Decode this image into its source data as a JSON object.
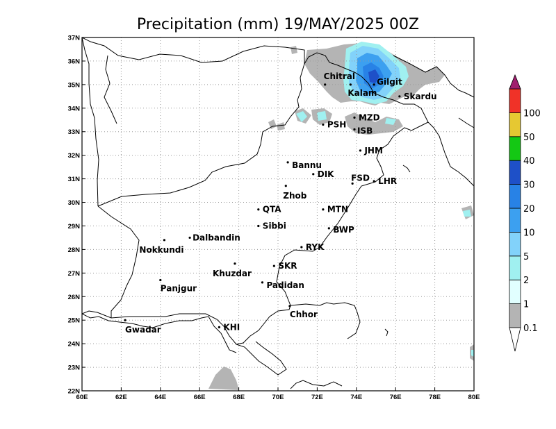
{
  "title": "Precipitation (mm) 19/MAY/2025 00Z",
  "map": {
    "x_ticks": [
      "60E",
      "62E",
      "64E",
      "66E",
      "68E",
      "70E",
      "72E",
      "74E",
      "76E",
      "78E",
      "80E"
    ],
    "y_ticks": [
      "22N",
      "23N",
      "24N",
      "25N",
      "26N",
      "27N",
      "28N",
      "29N",
      "30N",
      "31N",
      "32N",
      "33N",
      "34N",
      "35N",
      "36N",
      "37N"
    ],
    "lon_range": [
      60,
      80
    ],
    "lat_range": [
      22,
      37
    ],
    "gridlines": "dotted",
    "cities": [
      {
        "name": "Chitral",
        "lon": 72.4,
        "lat": 35.0
      },
      {
        "name": "Gilgit",
        "lon": 74.9,
        "lat": 35.0
      },
      {
        "name": "Kalam",
        "lon": 73.7,
        "lat": 35.0
      },
      {
        "name": "Skardu",
        "lon": 76.2,
        "lat": 34.5
      },
      {
        "name": "MZD",
        "lon": 73.9,
        "lat": 33.6
      },
      {
        "name": "PSH",
        "lon": 72.3,
        "lat": 33.3
      },
      {
        "name": "ISB",
        "lon": 73.9,
        "lat": 33.1
      },
      {
        "name": "JHM",
        "lon": 74.2,
        "lat": 32.2
      },
      {
        "name": "Bannu",
        "lon": 70.5,
        "lat": 31.7
      },
      {
        "name": "DIK",
        "lon": 71.8,
        "lat": 31.2
      },
      {
        "name": "FSD",
        "lon": 73.8,
        "lat": 30.8
      },
      {
        "name": "LHR",
        "lon": 74.9,
        "lat": 30.9
      },
      {
        "name": "Zhob",
        "lon": 70.4,
        "lat": 30.7
      },
      {
        "name": "QTA",
        "lon": 69.0,
        "lat": 29.7
      },
      {
        "name": "MTN",
        "lon": 72.3,
        "lat": 29.7
      },
      {
        "name": "Sibbi",
        "lon": 69.0,
        "lat": 29.0
      },
      {
        "name": "BWP",
        "lon": 72.6,
        "lat": 28.9
      },
      {
        "name": "Nokkundi",
        "lon": 64.2,
        "lat": 28.4
      },
      {
        "name": "Dalbandin",
        "lon": 65.5,
        "lat": 28.5
      },
      {
        "name": "RYK",
        "lon": 71.2,
        "lat": 28.1
      },
      {
        "name": "Khuzdar",
        "lon": 67.8,
        "lat": 27.4
      },
      {
        "name": "SKR",
        "lon": 69.8,
        "lat": 27.3
      },
      {
        "name": "Padidan",
        "lon": 69.2,
        "lat": 26.6
      },
      {
        "name": "Panjgur",
        "lon": 64.0,
        "lat": 26.7
      },
      {
        "name": "Chhor",
        "lon": 70.6,
        "lat": 25.6
      },
      {
        "name": "KHI",
        "lon": 67.0,
        "lat": 24.7
      },
      {
        "name": "Gwadar",
        "lon": 62.2,
        "lat": 25.0
      }
    ]
  },
  "colorbar": {
    "levels": [
      "0.1",
      "1",
      "2",
      "5",
      "10",
      "20",
      "30",
      "40",
      "50",
      "100"
    ],
    "colors": [
      "#b4b4b4",
      "#e1ffff",
      "#a0f0f0",
      "#82d2fa",
      "#3ca0f0",
      "#2882e6",
      "#1e50c8",
      "#14c814",
      "#e6c832",
      "#f03228",
      "#a01e6e"
    ],
    "under_color": "#ffffff"
  }
}
